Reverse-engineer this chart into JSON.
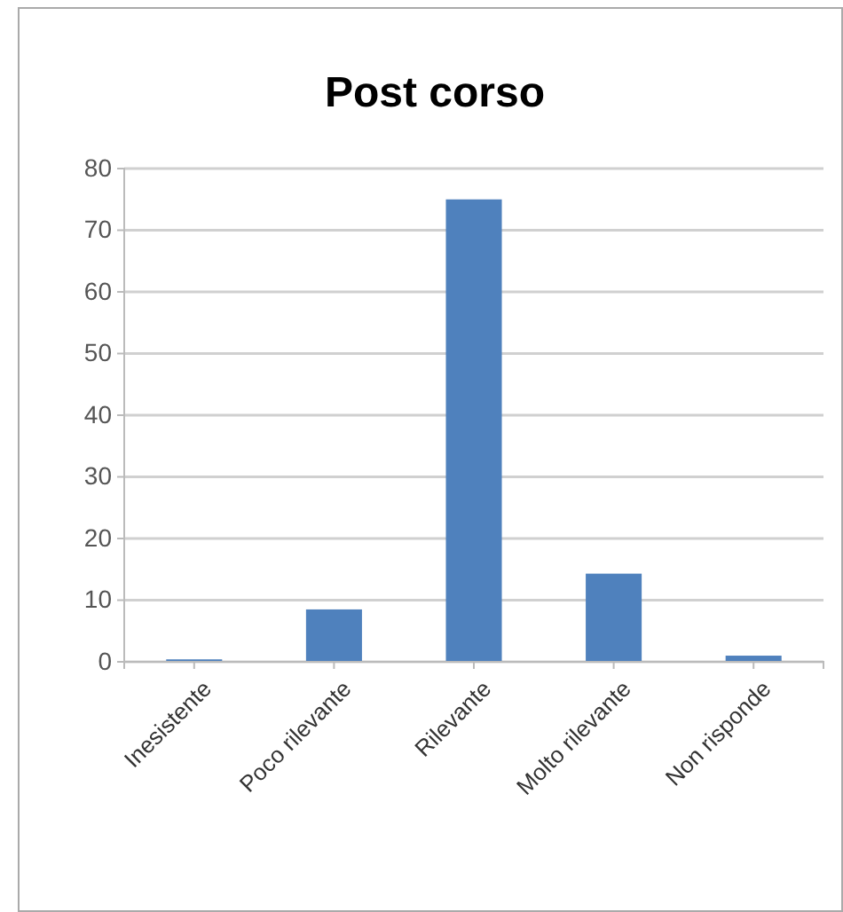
{
  "chart_data": {
    "type": "bar",
    "title": "Post corso",
    "categories": [
      "Inesistente",
      "Poco rilevante",
      "Rilevante",
      "Molto rilevante",
      "Non risponde"
    ],
    "values": [
      0.4,
      8.5,
      75,
      14.3,
      1
    ],
    "color": "#4f81bd",
    "ylim": [
      0,
      80
    ],
    "yticks": [
      0,
      10,
      20,
      30,
      40,
      50,
      60,
      70,
      80
    ],
    "grid": "y"
  }
}
